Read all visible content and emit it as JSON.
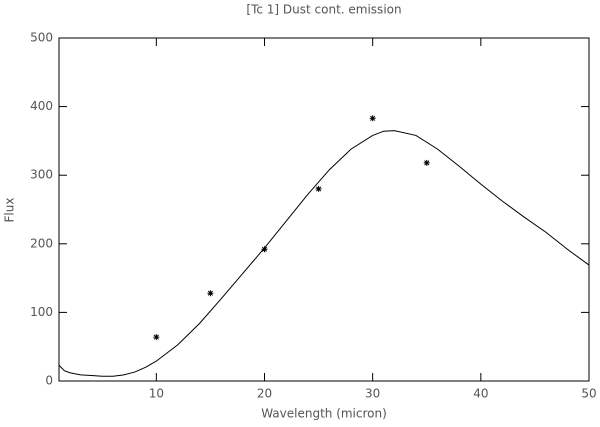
{
  "chart_data": {
    "type": "line",
    "title": "[Tc 1] Dust cont. emission",
    "x_label": "Wavelength (micron)",
    "y_label": "Flux",
    "xlim": [
      1,
      50
    ],
    "xticks": [
      10,
      20,
      30,
      40,
      50
    ],
    "ylim": [
      0,
      500
    ],
    "yticks": [
      0,
      100,
      200,
      300,
      400,
      500
    ],
    "series": [
      {
        "type": "line",
        "color": "#000000",
        "x": [
          1,
          1.5,
          2,
          3,
          4,
          5,
          6,
          7,
          8,
          9,
          10,
          12,
          14,
          16,
          18,
          20,
          22,
          24,
          26,
          28,
          30,
          31,
          32,
          34,
          36,
          38,
          40,
          42,
          44,
          46,
          48,
          50
        ],
        "values": [
          23,
          15,
          12,
          9,
          8,
          7,
          7,
          9,
          13,
          20,
          29,
          53,
          84,
          120,
          157,
          194,
          233,
          272,
          308,
          338,
          358,
          364,
          365,
          358,
          338,
          313,
          287,
          262,
          239,
          217,
          192,
          169
        ]
      },
      {
        "type": "scatter",
        "color": "#000000",
        "x": [
          10,
          15,
          20,
          25,
          30,
          35
        ],
        "values": [
          64,
          128,
          192,
          280,
          383,
          318
        ]
      }
    ]
  }
}
